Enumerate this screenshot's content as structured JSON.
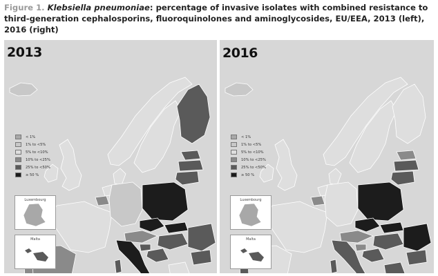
{
  "caption": {
    "figure_label": "Figure 1.",
    "species": "Klebsiella pneumoniae",
    "text": ": percentage of invasive isolates with combined resistance to third-generation cephalosporins, fluoroquinolones and aminoglycosides, EU/EEA, 2013 (left), 2016 (right)"
  },
  "legend": [
    {
      "label": "< 1%",
      "color": "#a8a8a8"
    },
    {
      "label": "1% to <5%",
      "color": "#c8c8c8"
    },
    {
      "label": "5% to <10%",
      "color": "#dedede"
    },
    {
      "label": "10% to <25%",
      "color": "#8a8a8a"
    },
    {
      "label": "25% to <50%",
      "color": "#5a5a5a"
    },
    {
      "label": "≥ 50 %",
      "color": "#1c1c1c"
    }
  ],
  "colors": {
    "sea": "#d7d7d7",
    "no_data": "#ececec",
    "border": "#ffffff"
  },
  "maps": [
    {
      "year": "2013",
      "inset_luxembourg": "Luxembourg",
      "inset_malta": "Malta"
    },
    {
      "year": "2016",
      "inset_luxembourg": "Luxembourg",
      "inset_malta": "Malta"
    }
  ]
}
